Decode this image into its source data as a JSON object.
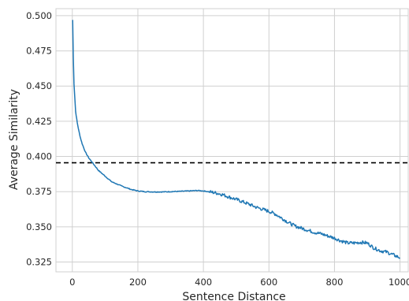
{
  "chart_data": {
    "type": "line",
    "title": "",
    "xlabel": "Sentence Distance",
    "ylabel": "Average Similarity",
    "xlim": [
      -50,
      1025
    ],
    "ylim": [
      0.318,
      0.505
    ],
    "x_ticks": [
      0,
      200,
      400,
      600,
      800,
      1000
    ],
    "x_tick_labels": [
      "0",
      "200",
      "400",
      "600",
      "800",
      "1000"
    ],
    "y_ticks": [
      0.325,
      0.35,
      0.375,
      0.4,
      0.425,
      0.45,
      0.475,
      0.5
    ],
    "y_tick_labels": [
      "0.325",
      "0.350",
      "0.375",
      "0.400",
      "0.425",
      "0.450",
      "0.475",
      "0.500"
    ],
    "grid": true,
    "series": [
      {
        "color": "#1f77b4",
        "x": [
          1,
          3,
          5,
          8,
          10,
          15,
          20,
          25,
          30,
          40,
          50,
          60,
          70,
          80,
          100,
          120,
          150,
          180,
          200,
          220,
          250,
          280,
          300,
          330,
          360,
          380,
          400,
          420,
          440,
          460,
          480,
          500,
          520,
          540,
          560,
          580,
          600,
          620,
          640,
          660,
          680,
          700,
          720,
          740,
          760,
          780,
          800,
          820,
          840,
          860,
          880,
          900,
          920,
          940,
          960,
          980,
          1000
        ],
        "y": [
          0.497,
          0.47,
          0.452,
          0.44,
          0.432,
          0.424,
          0.418,
          0.413,
          0.409,
          0.403,
          0.399,
          0.396,
          0.393,
          0.39,
          0.386,
          0.382,
          0.379,
          0.3765,
          0.3755,
          0.375,
          0.3748,
          0.3748,
          0.375,
          0.3752,
          0.3755,
          0.3758,
          0.3755,
          0.3748,
          0.374,
          0.3728,
          0.371,
          0.3695,
          0.3678,
          0.366,
          0.364,
          0.3625,
          0.361,
          0.359,
          0.356,
          0.353,
          0.3505,
          0.349,
          0.3475,
          0.346,
          0.345,
          0.3435,
          0.342,
          0.34,
          0.3385,
          0.3385,
          0.339,
          0.3385,
          0.335,
          0.333,
          0.332,
          0.33,
          0.328
        ]
      }
    ],
    "reference_line": {
      "y": 0.3955,
      "style": "dashed",
      "color": "#000000"
    }
  }
}
